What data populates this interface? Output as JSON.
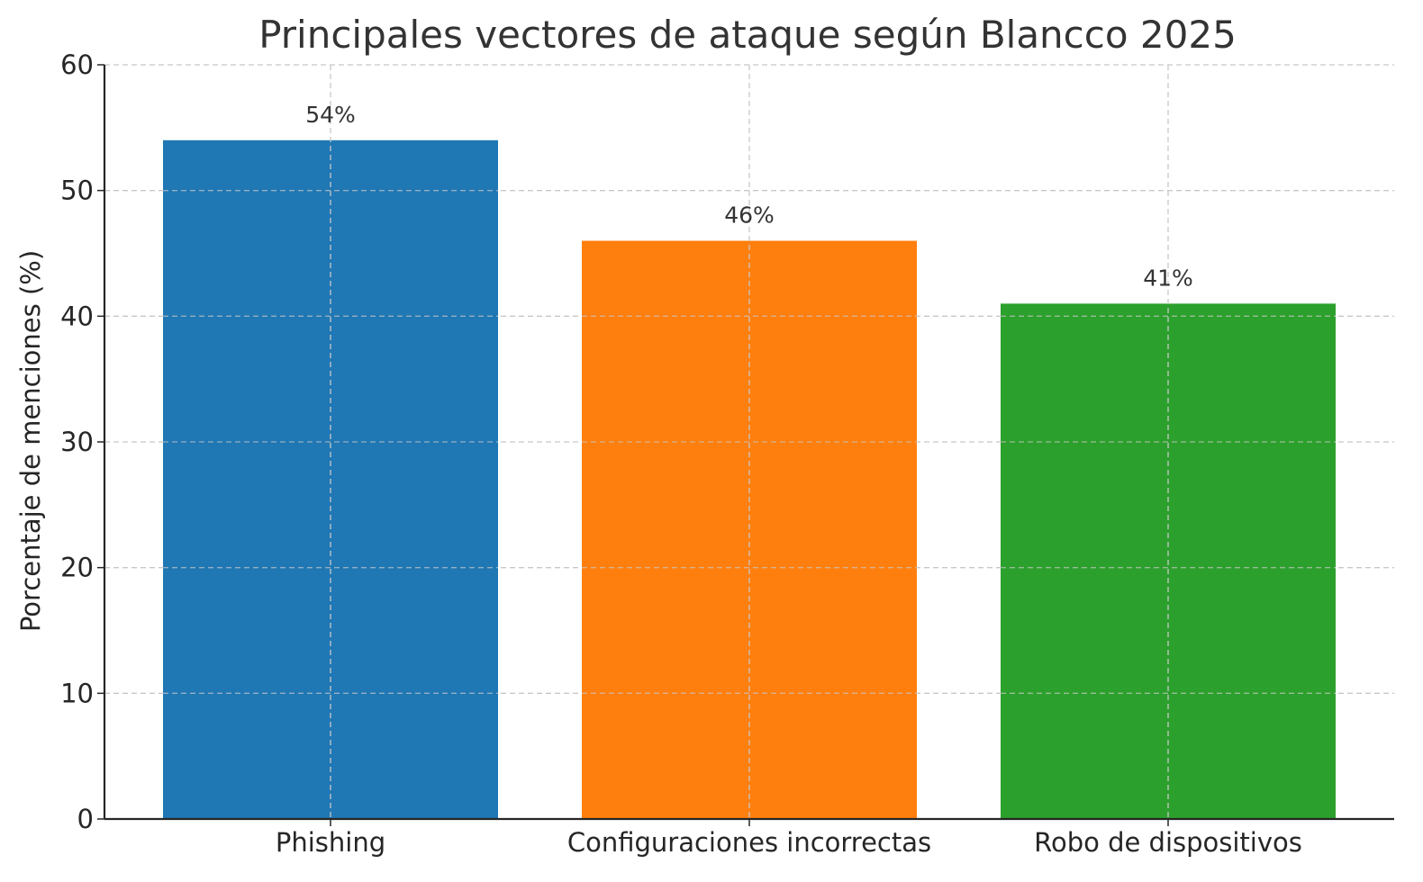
{
  "chart_data": {
    "type": "bar",
    "title": "Principales vectores de ataque según Blancco 2025",
    "xlabel": "",
    "ylabel": "Porcentaje de menciones (%)",
    "categories": [
      "Phishing",
      "Configuraciones incorrectas",
      "Robo de dispositivos"
    ],
    "values": [
      54,
      46,
      41
    ],
    "data_labels": [
      "54%",
      "46%",
      "41%"
    ],
    "colors": [
      "#1f77b4",
      "#ff7f0e",
      "#2ca02c"
    ],
    "ylim": [
      0,
      60
    ],
    "yticks": [
      0,
      10,
      20,
      30,
      40,
      50,
      60
    ],
    "grid": true,
    "legend": null
  }
}
